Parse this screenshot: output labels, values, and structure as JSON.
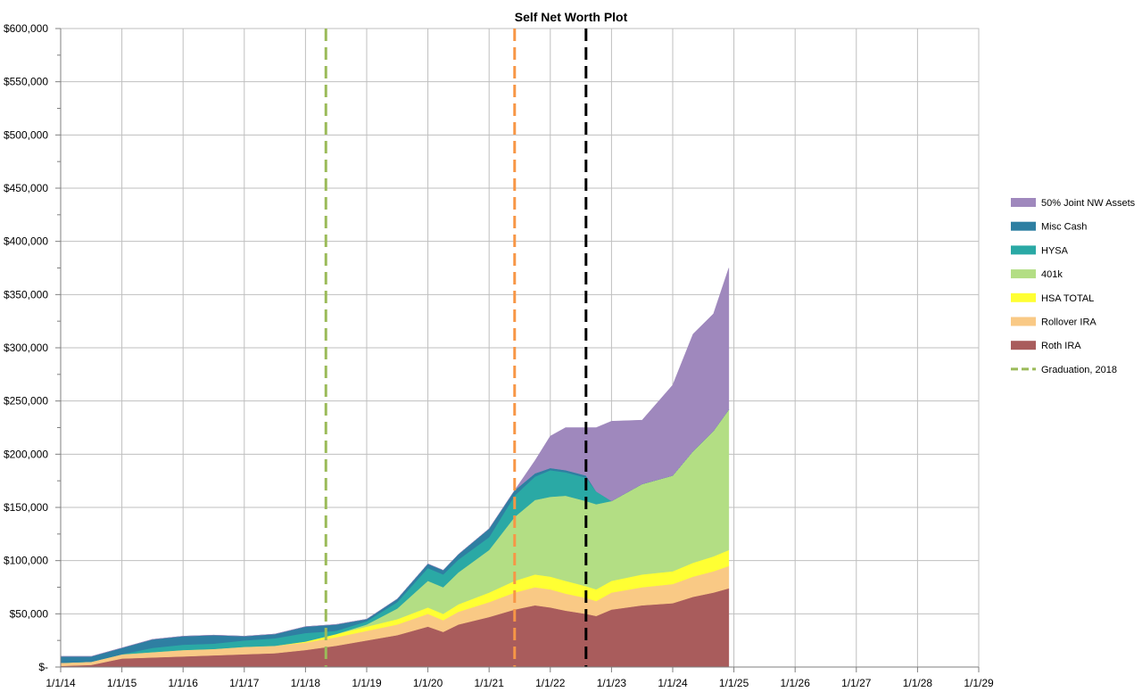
{
  "chart_data": {
    "type": "area",
    "title": "Self Net Worth Plot",
    "xlabel": "",
    "ylabel": "",
    "ylim": [
      0,
      600000
    ],
    "xlim": [
      "1/1/14",
      "1/1/29"
    ],
    "x_ticks": [
      "1/1/14",
      "1/1/15",
      "1/1/16",
      "1/1/17",
      "1/1/18",
      "1/1/19",
      "1/1/20",
      "1/1/21",
      "1/1/22",
      "1/1/23",
      "1/1/24",
      "1/1/25",
      "1/1/26",
      "1/1/27",
      "1/1/28",
      "1/1/29"
    ],
    "y_ticks": [
      "$-",
      "$50,000",
      "$100,000",
      "$150,000",
      "$200,000",
      "$250,000",
      "$300,000",
      "$350,000",
      "$400,000",
      "$450,000",
      "$500,000",
      "$550,000",
      "$600,000"
    ],
    "grid": true,
    "legend_position": "right",
    "stacked": true,
    "x": [
      "2014-01",
      "2014-07",
      "2015-01",
      "2015-07",
      "2016-01",
      "2016-07",
      "2017-01",
      "2017-07",
      "2018-01",
      "2018-07",
      "2019-01",
      "2019-07",
      "2020-01",
      "2020-04",
      "2020-07",
      "2021-01",
      "2021-06",
      "2021-10",
      "2022-01",
      "2022-04",
      "2022-08",
      "2022-10",
      "2023-01",
      "2023-07",
      "2024-01",
      "2024-05",
      "2024-09",
      "2024-12"
    ],
    "series": [
      {
        "name": "Roth IRA",
        "color": "#a95c5c",
        "values": [
          1000,
          2000,
          8000,
          9000,
          10000,
          11000,
          12000,
          13000,
          16000,
          20000,
          25000,
          30000,
          38000,
          33000,
          40000,
          47000,
          54000,
          58000,
          56000,
          53000,
          50000,
          48000,
          54000,
          58000,
          60000,
          66000,
          70000,
          74000
        ]
      },
      {
        "name": "Rollover IRA",
        "color": "#f9c985",
        "values": [
          3000,
          3000,
          4000,
          5000,
          6000,
          6000,
          7000,
          7000,
          7000,
          8000,
          9000,
          10000,
          12000,
          11000,
          12000,
          14000,
          16000,
          17000,
          17000,
          16000,
          15000,
          14000,
          16000,
          17000,
          18000,
          19000,
          20000,
          21000
        ]
      },
      {
        "name": "HSA TOTAL",
        "color": "#ffff33",
        "values": [
          0,
          0,
          0,
          0,
          0,
          0,
          0,
          0,
          1000,
          3000,
          4000,
          5000,
          6000,
          6000,
          7000,
          9000,
          11000,
          12000,
          12000,
          12000,
          11000,
          11000,
          11000,
          12000,
          12000,
          13000,
          14000,
          15000
        ]
      },
      {
        "name": "401k",
        "color": "#b3de84",
        "values": [
          0,
          0,
          0,
          0,
          0,
          0,
          0,
          0,
          0,
          0,
          2000,
          10000,
          25000,
          25000,
          30000,
          40000,
          60000,
          70000,
          75000,
          80000,
          80000,
          80000,
          75000,
          85000,
          90000,
          105000,
          118000,
          132000
        ]
      },
      {
        "name": "HYSA",
        "color": "#2aa9a5",
        "values": [
          0,
          0,
          0,
          4000,
          5000,
          5000,
          6000,
          7000,
          8000,
          3000,
          3000,
          6000,
          12000,
          12000,
          12000,
          12000,
          20000,
          22000,
          25000,
          22000,
          22000,
          12000,
          0,
          0,
          0,
          0,
          0,
          0
        ]
      },
      {
        "name": "Misc Cash",
        "color": "#2e7fa2",
        "values": [
          6000,
          5000,
          6000,
          8000,
          8000,
          8000,
          4000,
          4000,
          6000,
          6000,
          2000,
          3000,
          4000,
          4000,
          5000,
          8000,
          5000,
          3000,
          2000,
          2000,
          2000,
          0,
          0,
          0,
          0,
          0,
          0,
          0
        ]
      },
      {
        "name": "50% Joint NW Assets",
        "color": "#9f88bd",
        "values": [
          0,
          0,
          0,
          0,
          0,
          0,
          0,
          0,
          0,
          0,
          0,
          0,
          0,
          0,
          0,
          0,
          0,
          12000,
          30000,
          40000,
          45000,
          60000,
          75000,
          60000,
          85000,
          110000,
          110000,
          133000
        ]
      }
    ],
    "vlines": [
      {
        "name": "Graduation, 2018",
        "x": "2018-05",
        "color": "#9bbb59",
        "style": "dashed"
      },
      {
        "name": "",
        "x": "2021-06",
        "color": "#f79646",
        "style": "dashed"
      },
      {
        "name": "",
        "x": "2022-08",
        "color": "#000000",
        "style": "dashed"
      }
    ],
    "legend_order": [
      "50% Joint NW Assets",
      "Misc Cash",
      "HYSA",
      "401k",
      "HSA TOTAL",
      "Rollover IRA",
      "Roth IRA",
      "Graduation, 2018"
    ]
  }
}
